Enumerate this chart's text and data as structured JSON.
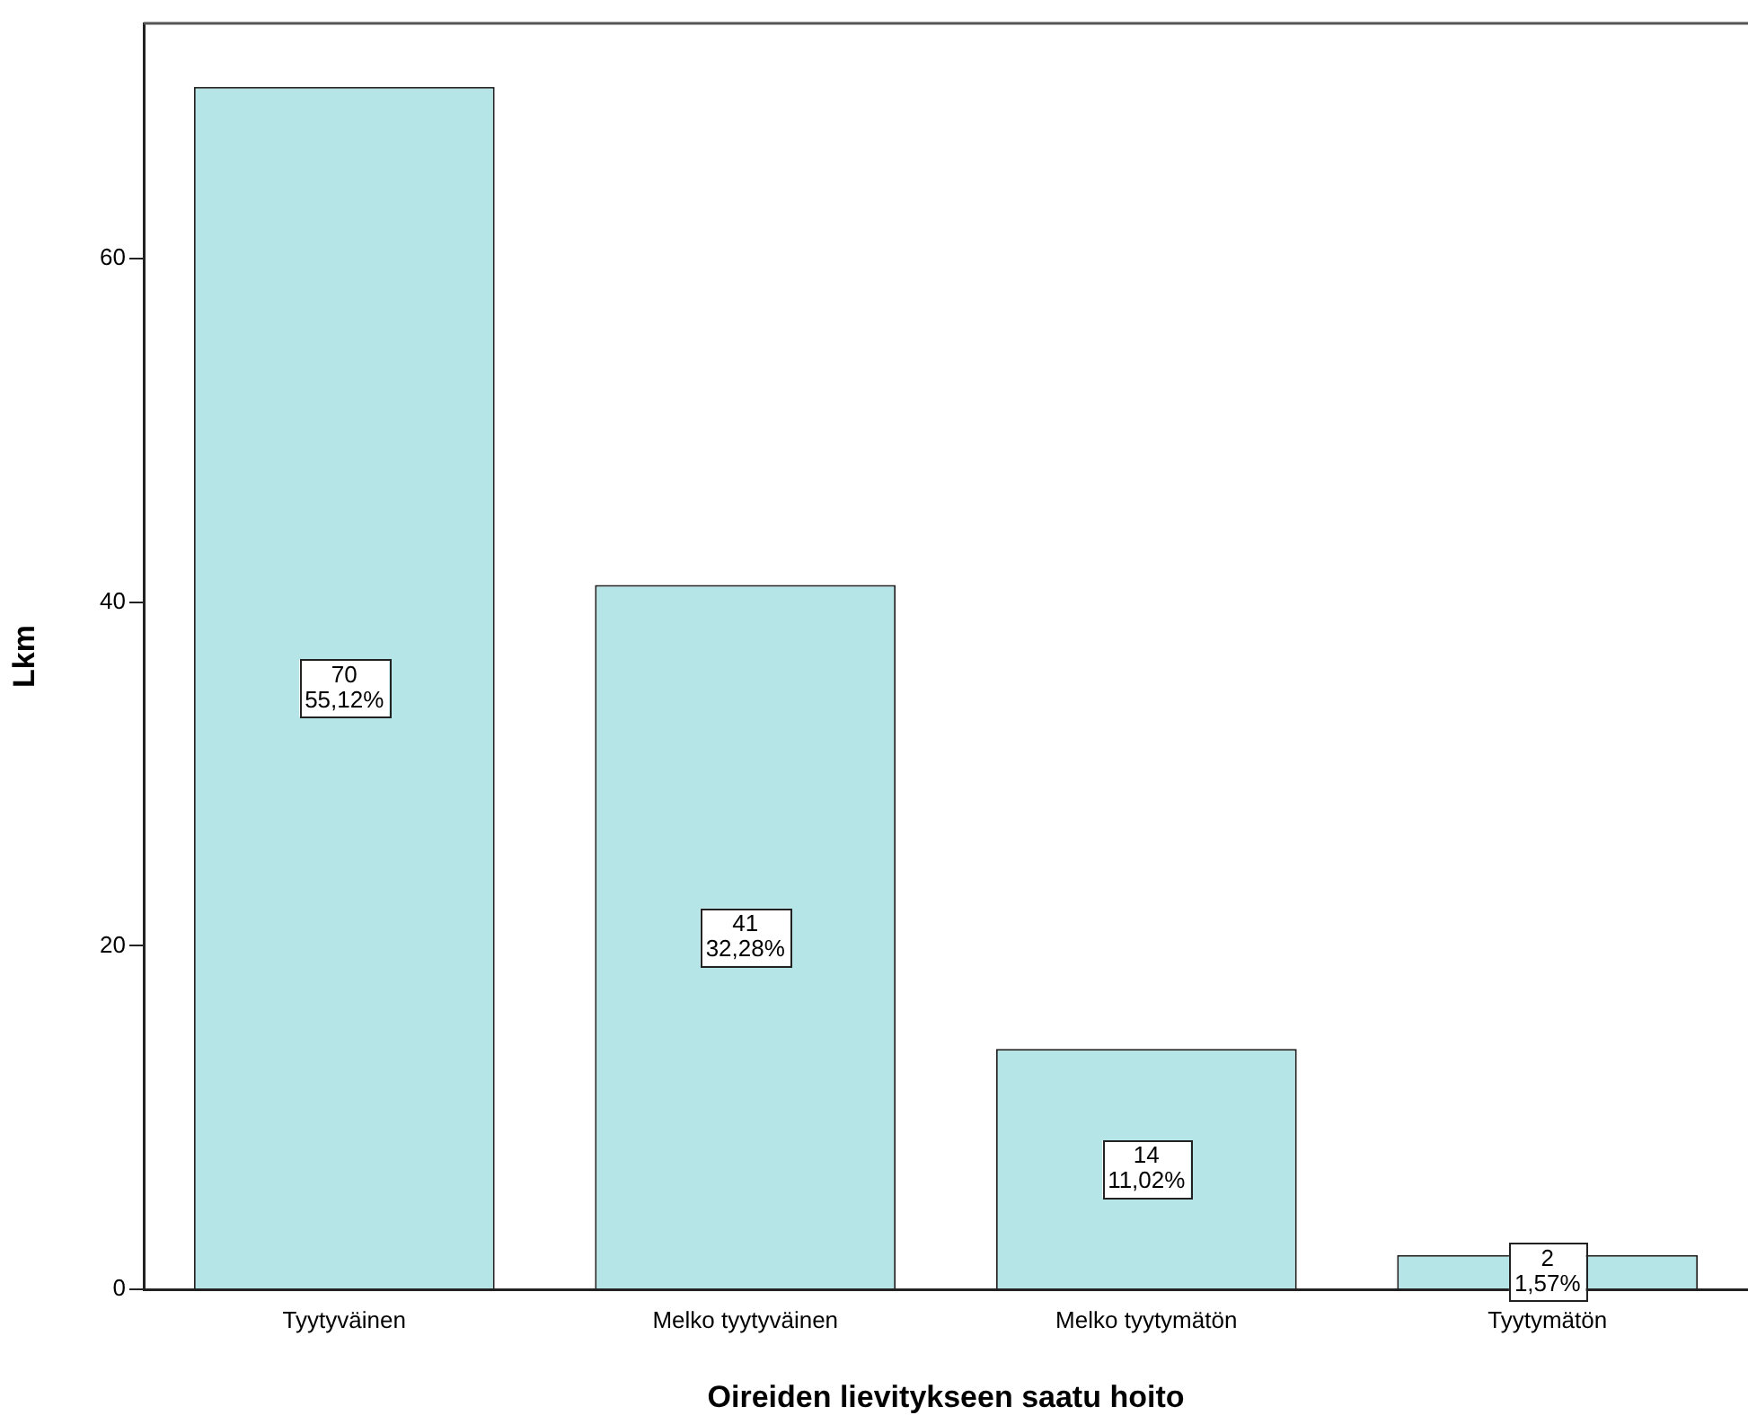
{
  "chart_data": {
    "type": "bar",
    "xlabel": "Oireiden lievitykseen saatu hoito",
    "ylabel": "Lkm",
    "categories": [
      "Tyytyväinen",
      "Melko tyytyväinen",
      "Melko tyytymätön",
      "Tyytymätön"
    ],
    "values": [
      70,
      41,
      14,
      2
    ],
    "color": "#b5e5e7",
    "value_labels": [
      "70\n55,12%",
      "41\n32,28%",
      "14\n11,02%",
      "2\n1,57%"
    ],
    "ylim": [
      0,
      73.7
    ],
    "yticks": [
      0,
      20,
      40,
      60
    ],
    "grid": false,
    "legend": false
  }
}
